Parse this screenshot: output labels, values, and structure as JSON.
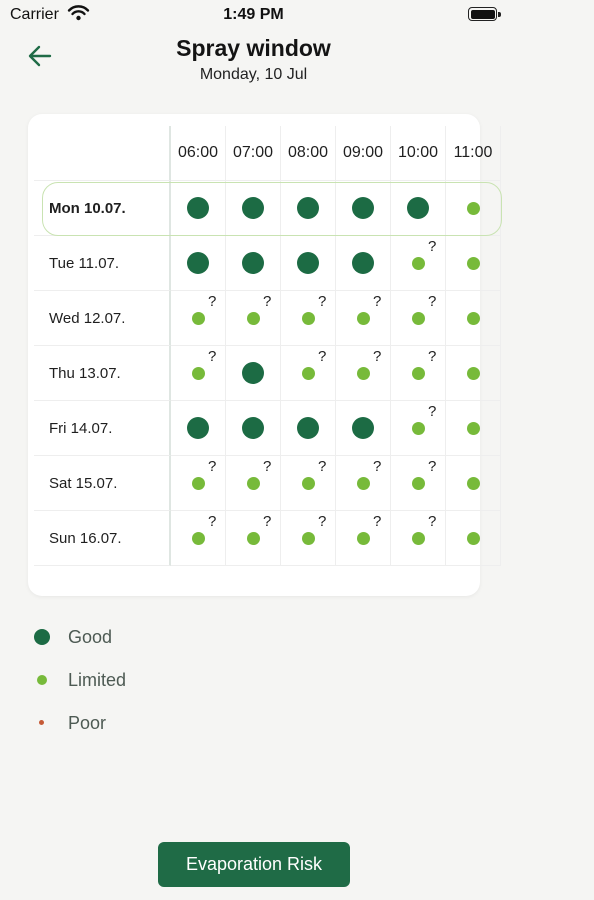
{
  "status_bar": {
    "carrier": "Carrier",
    "time": "1:49 PM"
  },
  "header": {
    "title": "Spray window",
    "subtitle": "Monday, 10 Jul",
    "back_icon": "arrow-left-icon"
  },
  "grid": {
    "hours": [
      "06:00",
      "07:00",
      "08:00",
      "09:00",
      "10:00",
      "11:00"
    ],
    "days": [
      {
        "label": "Mon 10.07.",
        "today": true,
        "cells": [
          {
            "level": "good",
            "uncertain": false
          },
          {
            "level": "good",
            "uncertain": false
          },
          {
            "level": "good",
            "uncertain": false
          },
          {
            "level": "good",
            "uncertain": false
          },
          {
            "level": "good",
            "uncertain": false
          },
          {
            "level": "limited",
            "uncertain": false
          }
        ]
      },
      {
        "label": "Tue 11.07.",
        "today": false,
        "cells": [
          {
            "level": "good",
            "uncertain": false
          },
          {
            "level": "good",
            "uncertain": false
          },
          {
            "level": "good",
            "uncertain": false
          },
          {
            "level": "good",
            "uncertain": false
          },
          {
            "level": "limited",
            "uncertain": true
          },
          {
            "level": "limited",
            "uncertain": false
          }
        ]
      },
      {
        "label": "Wed 12.07.",
        "today": false,
        "cells": [
          {
            "level": "limited",
            "uncertain": true
          },
          {
            "level": "limited",
            "uncertain": true
          },
          {
            "level": "limited",
            "uncertain": true
          },
          {
            "level": "limited",
            "uncertain": true
          },
          {
            "level": "limited",
            "uncertain": true
          },
          {
            "level": "limited",
            "uncertain": false
          }
        ]
      },
      {
        "label": "Thu 13.07.",
        "today": false,
        "cells": [
          {
            "level": "limited",
            "uncertain": true
          },
          {
            "level": "good",
            "uncertain": false
          },
          {
            "level": "limited",
            "uncertain": true
          },
          {
            "level": "limited",
            "uncertain": true
          },
          {
            "level": "limited",
            "uncertain": true
          },
          {
            "level": "limited",
            "uncertain": false
          }
        ]
      },
      {
        "label": "Fri 14.07.",
        "today": false,
        "cells": [
          {
            "level": "good",
            "uncertain": false
          },
          {
            "level": "good",
            "uncertain": false
          },
          {
            "level": "good",
            "uncertain": false
          },
          {
            "level": "good",
            "uncertain": false
          },
          {
            "level": "limited",
            "uncertain": true
          },
          {
            "level": "limited",
            "uncertain": false
          }
        ]
      },
      {
        "label": "Sat 15.07.",
        "today": false,
        "cells": [
          {
            "level": "limited",
            "uncertain": true
          },
          {
            "level": "limited",
            "uncertain": true
          },
          {
            "level": "limited",
            "uncertain": true
          },
          {
            "level": "limited",
            "uncertain": true
          },
          {
            "level": "limited",
            "uncertain": true
          },
          {
            "level": "limited",
            "uncertain": false
          }
        ]
      },
      {
        "label": "Sun 16.07.",
        "today": false,
        "cells": [
          {
            "level": "limited",
            "uncertain": true
          },
          {
            "level": "limited",
            "uncertain": true
          },
          {
            "level": "limited",
            "uncertain": true
          },
          {
            "level": "limited",
            "uncertain": true
          },
          {
            "level": "limited",
            "uncertain": true
          },
          {
            "level": "limited",
            "uncertain": false
          }
        ]
      }
    ],
    "uncertain_mark": "?"
  },
  "legend": [
    {
      "level": "good",
      "label": "Good"
    },
    {
      "level": "limited",
      "label": "Limited"
    },
    {
      "level": "poor",
      "label": "Poor"
    }
  ],
  "colors": {
    "good": "#1c6b44",
    "limited": "#77ba3a",
    "poor": "#c55a36",
    "accent": "#1f6b46"
  },
  "footer": {
    "button_label": "Evaporation Risk"
  }
}
